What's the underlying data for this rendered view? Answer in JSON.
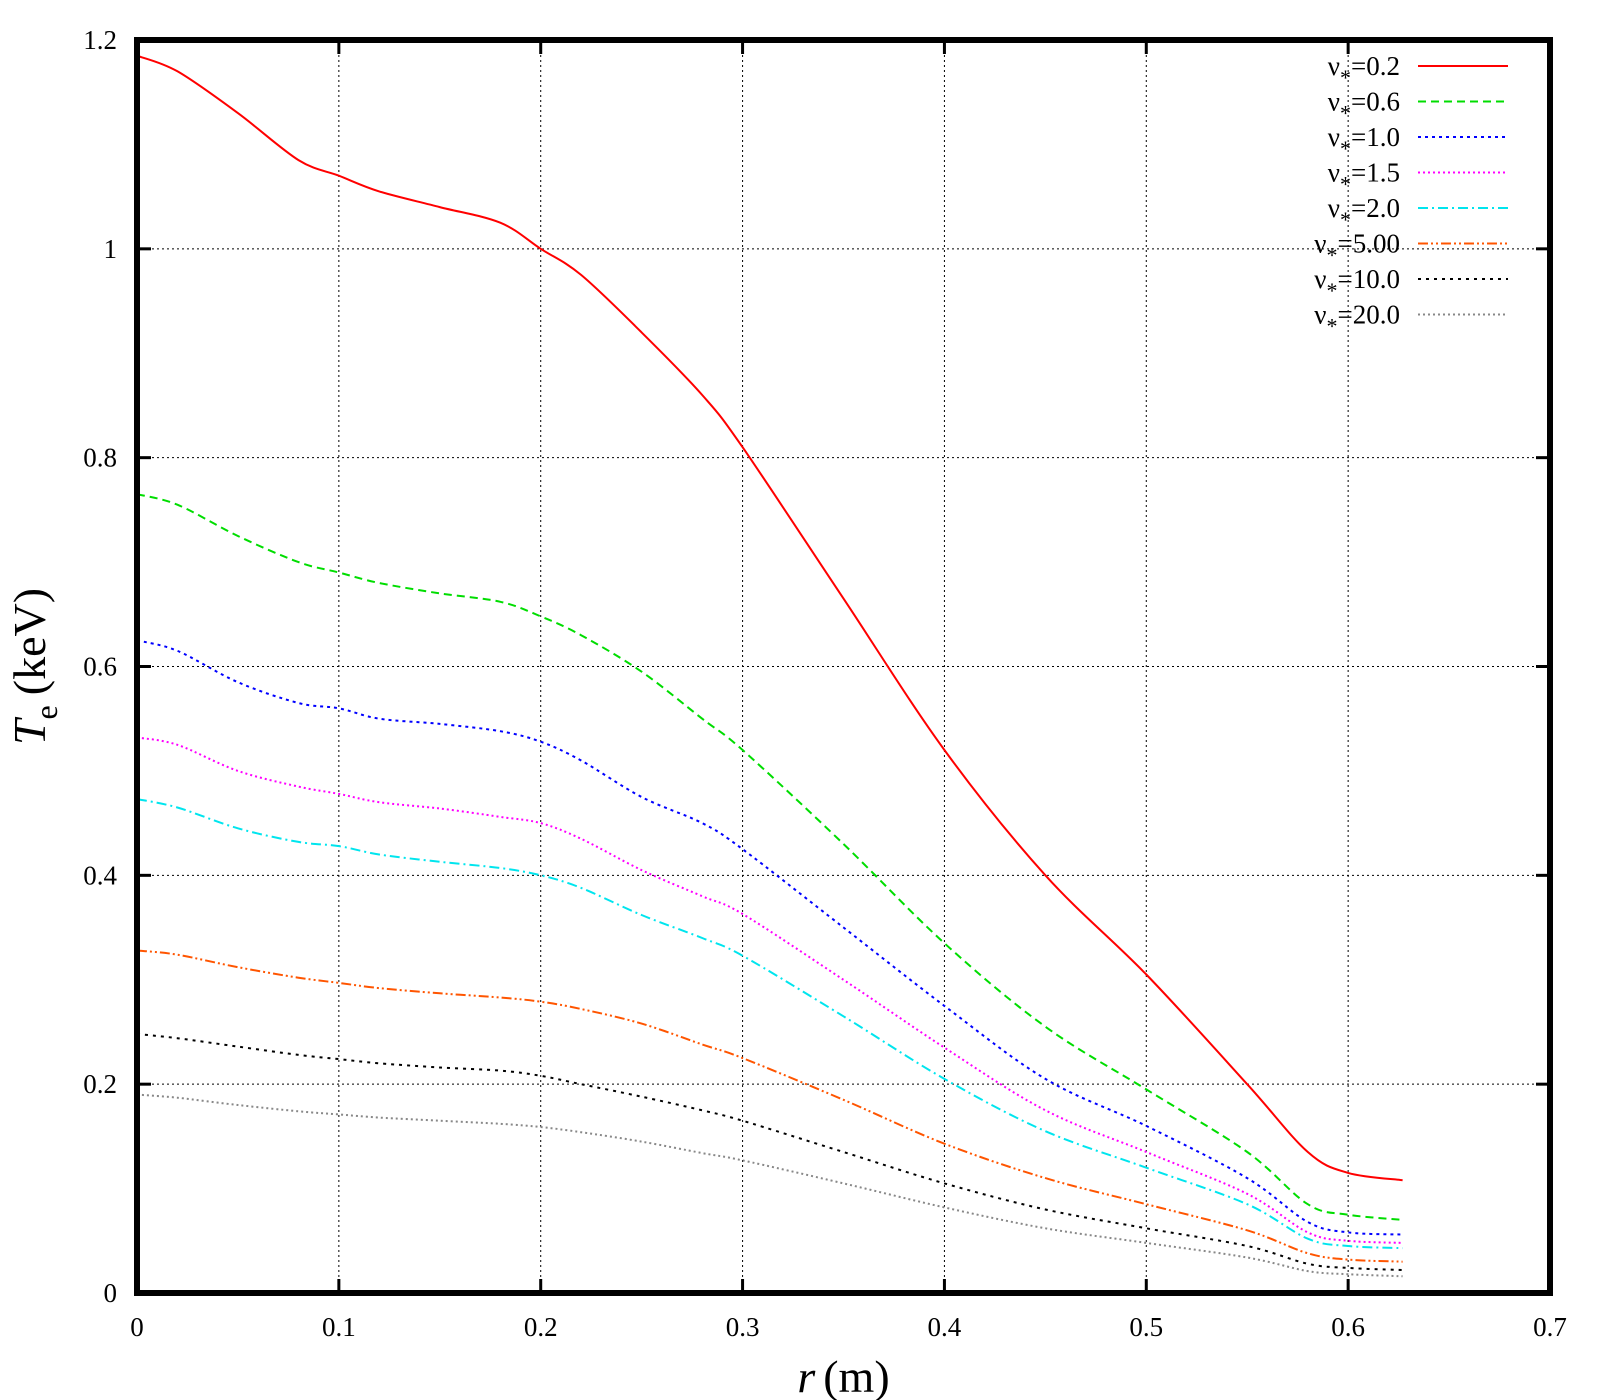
{
  "chart_data": {
    "type": "line",
    "xlabel": {
      "symbol": "r",
      "unit": "(m)"
    },
    "ylabel": {
      "symbol": "T",
      "subscript": "e",
      "unit": "(keV)"
    },
    "xlim": [
      0,
      0.7
    ],
    "ylim": [
      0,
      1.2
    ],
    "x_ticks": [
      "0",
      "0.1",
      "0.2",
      "0.3",
      "0.4",
      "0.5",
      "0.6",
      "0.7"
    ],
    "y_ticks": [
      "0",
      "0.2",
      "0.4",
      "0.6",
      "0.8",
      "1",
      "1.2"
    ],
    "x_tick_values": [
      0,
      0.1,
      0.2,
      0.3,
      0.4,
      0.5,
      0.6,
      0.7
    ],
    "y_tick_values": [
      0,
      0.2,
      0.4,
      0.6,
      0.8,
      1.0,
      1.2
    ],
    "grid": true,
    "legend_position": "top-right",
    "x": [
      0,
      0.02,
      0.05,
      0.08,
      0.1,
      0.12,
      0.15,
      0.18,
      0.2,
      0.22,
      0.25,
      0.28,
      0.3,
      0.35,
      0.4,
      0.45,
      0.5,
      0.55,
      0.58,
      0.6,
      0.627
    ],
    "series": [
      {
        "name": "ν*=0.2",
        "legend_prefix": "ν",
        "legend_subscript": "*",
        "legend_value": "=0.2",
        "color": "#ff0000",
        "dash": "",
        "values": [
          1.185,
          1.17,
          1.13,
          1.085,
          1.07,
          1.055,
          1.04,
          1.025,
          1.0,
          0.975,
          0.92,
          0.86,
          0.81,
          0.665,
          0.52,
          0.4,
          0.305,
          0.2,
          0.135,
          0.115,
          0.108
        ]
      },
      {
        "name": "ν*=0.6",
        "legend_prefix": "ν",
        "legend_subscript": "*",
        "legend_value": "=0.6",
        "color": "#00dd00",
        "dash": "8,5",
        "values": [
          0.765,
          0.755,
          0.725,
          0.7,
          0.69,
          0.68,
          0.67,
          0.662,
          0.648,
          0.63,
          0.595,
          0.55,
          0.52,
          0.43,
          0.335,
          0.255,
          0.195,
          0.135,
          0.085,
          0.075,
          0.07
        ]
      },
      {
        "name": "ν*=1.0",
        "legend_prefix": "ν",
        "legend_subscript": "*",
        "legend_value": "=1.0",
        "color": "#0000ff",
        "dash": "3,4",
        "values": [
          0.625,
          0.615,
          0.585,
          0.565,
          0.56,
          0.55,
          0.545,
          0.538,
          0.528,
          0.51,
          0.475,
          0.45,
          0.425,
          0.35,
          0.275,
          0.205,
          0.16,
          0.11,
          0.068,
          0.058,
          0.056
        ]
      },
      {
        "name": "ν*=1.5",
        "legend_prefix": "ν",
        "legend_subscript": "*",
        "legend_value": "=1.5",
        "color": "#ff00ff",
        "dash": "2,3",
        "values": [
          0.532,
          0.525,
          0.5,
          0.485,
          0.478,
          0.47,
          0.464,
          0.456,
          0.45,
          0.435,
          0.405,
          0.38,
          0.363,
          0.3,
          0.235,
          0.175,
          0.135,
          0.095,
          0.058,
          0.05,
          0.048
        ]
      },
      {
        "name": "ν*=2.0",
        "legend_prefix": "ν",
        "legend_subscript": "*",
        "legend_value": "=2.0",
        "color": "#00e5ee",
        "dash": "10,4,2,4",
        "values": [
          0.473,
          0.465,
          0.445,
          0.432,
          0.428,
          0.42,
          0.413,
          0.407,
          0.4,
          0.388,
          0.362,
          0.34,
          0.323,
          0.265,
          0.205,
          0.155,
          0.12,
          0.085,
          0.052,
          0.045,
          0.043
        ]
      },
      {
        "name": "ν*=5.00",
        "legend_prefix": "ν",
        "legend_subscript": "*",
        "legend_value": "=5.00",
        "color": "#ff5500",
        "dash": "10,3,2,3,2,3",
        "values": [
          0.328,
          0.324,
          0.312,
          0.302,
          0.297,
          0.292,
          0.287,
          0.283,
          0.279,
          0.272,
          0.258,
          0.238,
          0.225,
          0.185,
          0.143,
          0.11,
          0.085,
          0.06,
          0.038,
          0.032,
          0.03
        ]
      },
      {
        "name": "ν*=10.0",
        "legend_prefix": "ν",
        "legend_subscript": "*",
        "legend_value": "=10.0",
        "color": "#000000",
        "dash": "3,5",
        "values": [
          0.248,
          0.244,
          0.236,
          0.228,
          0.224,
          0.22,
          0.216,
          0.213,
          0.208,
          0.2,
          0.188,
          0.175,
          0.165,
          0.135,
          0.105,
          0.08,
          0.062,
          0.045,
          0.028,
          0.024,
          0.022
        ]
      },
      {
        "name": "ν*=20.0",
        "legend_prefix": "ν",
        "legend_subscript": "*",
        "legend_value": "=20.0",
        "color": "#888888",
        "dash": "2,3",
        "values": [
          0.19,
          0.187,
          0.18,
          0.174,
          0.171,
          0.168,
          0.165,
          0.162,
          0.159,
          0.154,
          0.145,
          0.134,
          0.127,
          0.105,
          0.082,
          0.062,
          0.048,
          0.034,
          0.021,
          0.018,
          0.016
        ]
      }
    ]
  }
}
